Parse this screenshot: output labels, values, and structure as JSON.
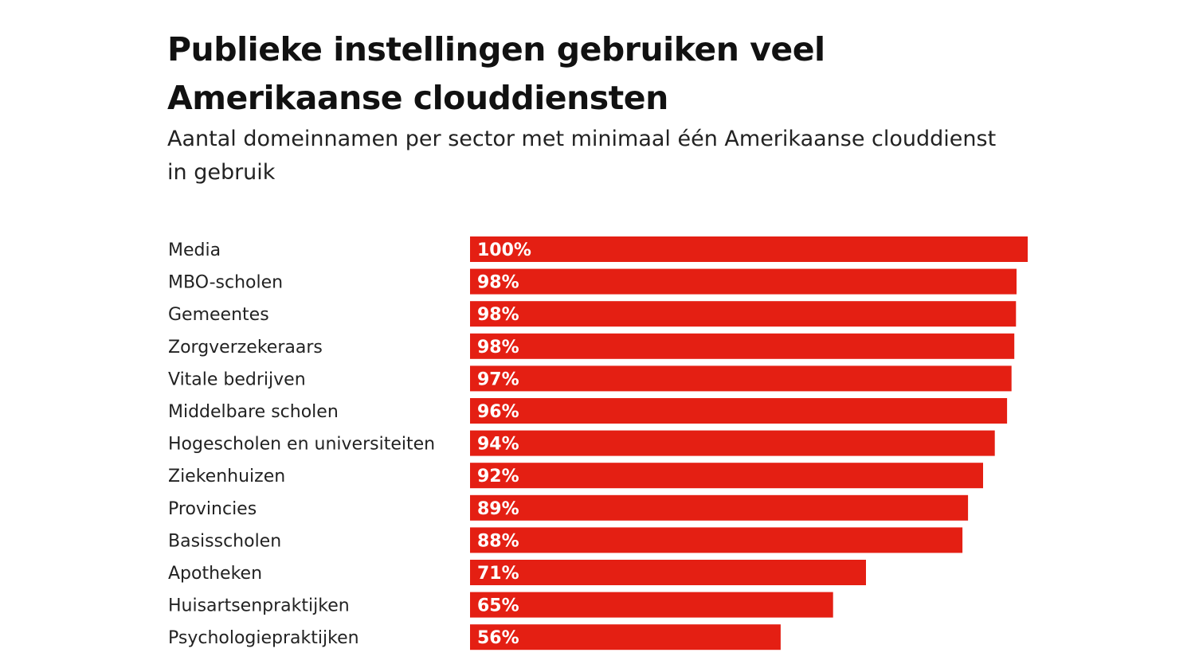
{
  "chart_data": {
    "type": "bar",
    "orientation": "horizontal",
    "title": "Publieke instellingen gebruiken veel Amerikaanse clouddiensten",
    "subtitle": "Aantal domeinnamen per sector met minimaal één Amerikaanse clouddienst in gebruik",
    "categories": [
      "Media",
      "MBO-scholen",
      "Gemeentes",
      "Zorgverzekeraars",
      "Vitale bedrijven",
      "Middelbare scholen",
      "Hogescholen en universiteiten",
      "Ziekenhuizen",
      "Provincies",
      "Basisscholen",
      "Apotheken",
      "Huisartsenpraktijken",
      "Psychologiepraktijken"
    ],
    "values": [
      100,
      98.0,
      97.9,
      97.6,
      97.1,
      96.3,
      94.1,
      92.0,
      89.3,
      88.3,
      71.0,
      65.1,
      55.7
    ],
    "labels": [
      "100%",
      "98%",
      "98%",
      "98%",
      "97%",
      "96%",
      "94%",
      "92%",
      "89%",
      "88%",
      "71%",
      "65%",
      "56%"
    ],
    "unit": "%",
    "xlim": [
      0,
      100
    ],
    "grid": false,
    "legend": "none",
    "bar_color": "#e41f13"
  }
}
